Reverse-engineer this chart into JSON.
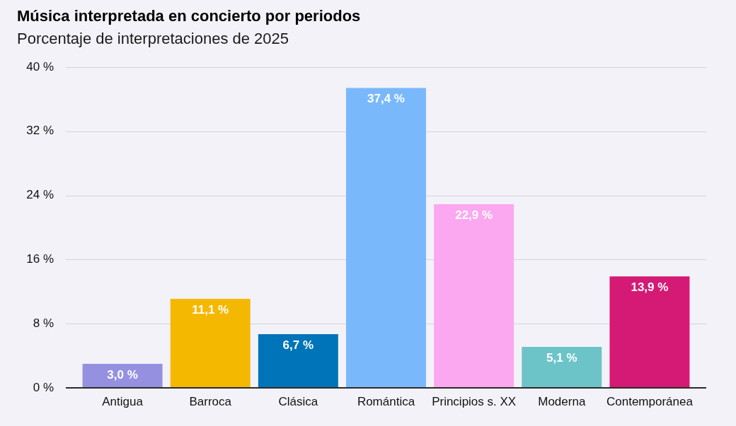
{
  "chart_data": {
    "type": "bar",
    "title": "Música interpretada en concierto por periodos",
    "subtitle": "Porcentaje de interpretaciones de 2025",
    "categories": [
      "Antigua",
      "Barroca",
      "Clásica",
      "Romántica",
      "Principios s. XX",
      "Moderna",
      "Contemporánea"
    ],
    "values": [
      3.0,
      11.1,
      6.7,
      37.4,
      22.9,
      5.1,
      13.9
    ],
    "colors": [
      "#9590e0",
      "#f5b800",
      "#0074b8",
      "#7ab8fc",
      "#fba8f0",
      "#6cc4c8",
      "#d41a74"
    ],
    "value_labels": [
      "3,0 %",
      "11,1 %",
      "6,7 %",
      "37,4 %",
      "22,9 %",
      "5,1 %",
      "13,9 %"
    ],
    "ylim": [
      0,
      40
    ],
    "yticks": [
      {
        "value": 0,
        "label": "0 %"
      },
      {
        "value": 8,
        "label": "8 %"
      },
      {
        "value": 16,
        "label": "16 %"
      },
      {
        "value": 24,
        "label": "24 %"
      },
      {
        "value": 32,
        "label": "32 %"
      },
      {
        "value": 40,
        "label": "40 %"
      }
    ],
    "grid": "y"
  }
}
